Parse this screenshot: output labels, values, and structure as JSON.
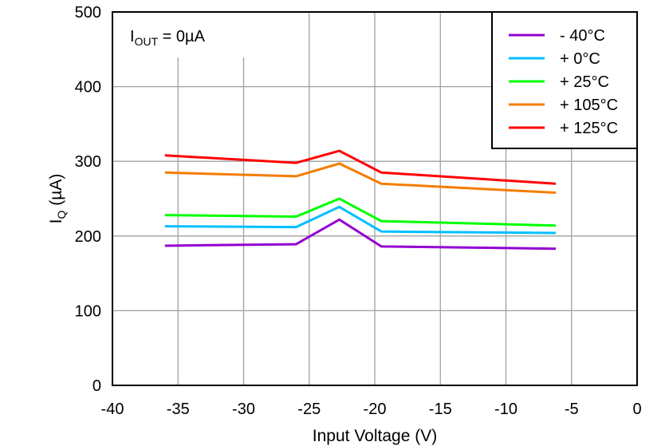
{
  "chart_data": {
    "type": "line",
    "xlabel": "Input Voltage (V)",
    "ylabel_main": "I",
    "ylabel_sub": "Q",
    "ylabel_rest": " (µA)",
    "annotation": {
      "main": "I",
      "sub": "OUT",
      "rest": " = 0µA"
    },
    "xlim": [
      -40,
      0
    ],
    "ylim": [
      0,
      500
    ],
    "xticks": [
      -40,
      -35,
      -30,
      -25,
      -20,
      -15,
      -10,
      -5,
      0
    ],
    "yticks": [
      0,
      100,
      200,
      300,
      400,
      500
    ],
    "grid": true,
    "legend_position": "top-right",
    "x": [
      -36,
      -26,
      -22.7,
      -19.5,
      -6.2
    ],
    "series": [
      {
        "name": "- 40°C",
        "color": "#9400D3",
        "values": [
          187,
          189,
          222,
          186,
          183
        ]
      },
      {
        "name": "+ 0°C",
        "color": "#00BFFF",
        "values": [
          213,
          212,
          239,
          206,
          204
        ]
      },
      {
        "name": "+ 25°C",
        "color": "#00FF00",
        "values": [
          228,
          226,
          250,
          220,
          214
        ]
      },
      {
        "name": "+ 105°C",
        "color": "#F57C00",
        "values": [
          285,
          280,
          297,
          270,
          258
        ]
      },
      {
        "name": "+ 125°C",
        "color": "#FF0000",
        "values": [
          308,
          298,
          314,
          285,
          270
        ]
      }
    ]
  }
}
